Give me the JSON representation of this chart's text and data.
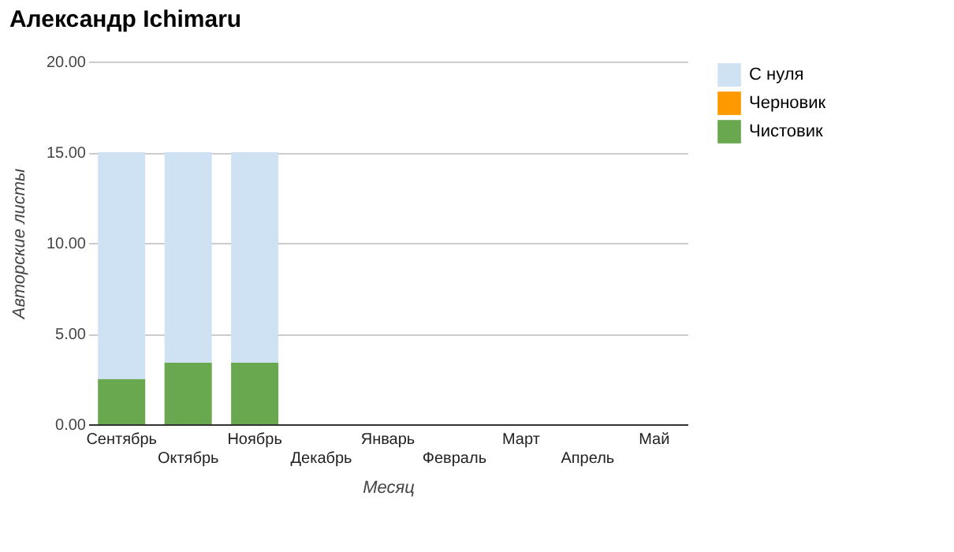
{
  "chart_data": {
    "type": "bar",
    "title": "Александр Ichimaru",
    "xlabel": "Месяц",
    "ylabel": "Авторские листы",
    "categories": [
      "Сентябрь",
      "Октябрь",
      "Ноябрь",
      "Декабрь",
      "Январь",
      "Февраль",
      "Март",
      "Апрель",
      "Май"
    ],
    "series": [
      {
        "name": "Чистовик",
        "color": "#6aa84f",
        "values": [
          2.5,
          3.4,
          3.4,
          null,
          null,
          null,
          null,
          null,
          null
        ]
      },
      {
        "name": "Черновик",
        "color": "#ff9900",
        "values": [
          0,
          0,
          0,
          null,
          null,
          null,
          null,
          null,
          null
        ]
      },
      {
        "name": "С нуля",
        "color": "#cfe2f3",
        "values": [
          12.5,
          11.6,
          11.6,
          null,
          null,
          null,
          null,
          null,
          null
        ]
      }
    ],
    "stacked": true,
    "ylim": [
      0,
      20
    ],
    "yticks": [
      {
        "value": 0,
        "label": "0.00"
      },
      {
        "value": 5,
        "label": "5.00"
      },
      {
        "value": 10,
        "label": "10.00"
      },
      {
        "value": 15,
        "label": "15.00"
      },
      {
        "value": 20,
        "label": "20.00"
      }
    ],
    "grid": "y",
    "legend": "right"
  }
}
